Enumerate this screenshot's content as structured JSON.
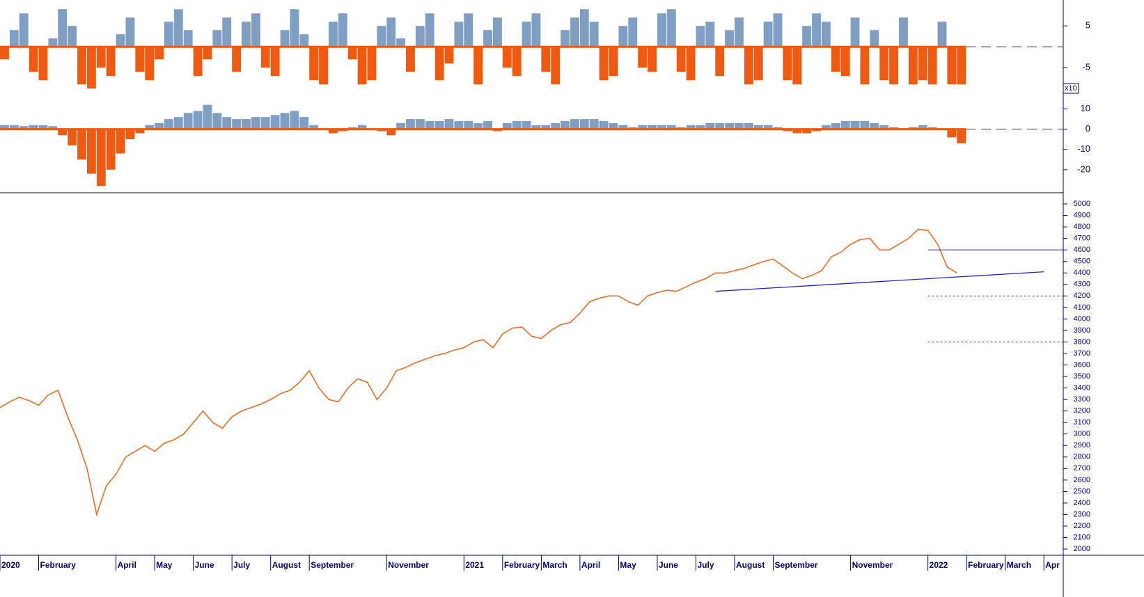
{
  "chart_data": [
    {
      "type": "bar",
      "positive_color": "#7f9ec4",
      "negative_color": "#f05a10",
      "zero_line": "dashed",
      "ylim": [
        -11.3,
        11.2
      ],
      "yticks": [
        5,
        -5
      ],
      "x": [
        0,
        0.25,
        0.5,
        0.75,
        1,
        1.25,
        1.5,
        1.75,
        2,
        2.25,
        2.5,
        2.75,
        3,
        3.25,
        3.5,
        3.75,
        4,
        4.25,
        4.5,
        4.75,
        5,
        5.25,
        5.5,
        5.75,
        6,
        6.25,
        6.5,
        6.75,
        7,
        7.25,
        7.5,
        7.75,
        8,
        8.25,
        8.5,
        8.75,
        9,
        9.25,
        9.5,
        9.75,
        10,
        10.25,
        10.5,
        10.75,
        11,
        11.25,
        11.5,
        11.75,
        12,
        12.25,
        12.5,
        12.75,
        13,
        13.25,
        13.5,
        13.75,
        14,
        14.25,
        14.5,
        14.75,
        15,
        15.25,
        15.5,
        15.75,
        16,
        16.25,
        16.5,
        16.75,
        17,
        17.25,
        17.5,
        17.75,
        18,
        18.25,
        18.5,
        18.75,
        19,
        19.25,
        19.5,
        19.75,
        20,
        20.25,
        20.5,
        20.75,
        21,
        21.25,
        21.5,
        21.75,
        22,
        22.25,
        22.5,
        22.75,
        23,
        23.25,
        23.5,
        23.75,
        24,
        24.25,
        24.5,
        24.75
      ],
      "values": [
        -3,
        4,
        8,
        -6,
        -8,
        2,
        9,
        5,
        -9,
        -10,
        -5,
        -7,
        3,
        7,
        -6,
        -8,
        -3,
        6,
        9,
        4,
        -7,
        -3,
        4,
        7,
        -6,
        6,
        8,
        -5,
        -7,
        4,
        9,
        3,
        -8,
        -9,
        6,
        8,
        -3,
        -9,
        -8,
        5,
        7,
        2,
        -6,
        5,
        8,
        -8,
        -4,
        6,
        8,
        -9,
        4,
        7,
        -5,
        -7,
        6,
        8,
        -6,
        -9,
        4,
        7,
        9,
        6,
        -8,
        -7,
        5,
        7,
        -5,
        -6,
        8,
        9,
        -6,
        -8,
        5,
        6,
        -7,
        4,
        7,
        -9,
        -8,
        6,
        8,
        -8,
        -9,
        5,
        8,
        6,
        -6,
        -7,
        7,
        -9,
        4,
        -8,
        -9,
        7,
        -9,
        -8,
        -9,
        6,
        -9,
        -9
      ]
    },
    {
      "type": "bar",
      "positive_color": "#7f9ec4",
      "negative_color": "#f05a10",
      "zero_line": "dashed",
      "scale_label": "x10",
      "ylim": [
        -31.4,
        17.4
      ],
      "yticks": [
        10,
        0,
        -10,
        -20
      ],
      "x": [
        0,
        0.25,
        0.5,
        0.75,
        1,
        1.25,
        1.5,
        1.75,
        2,
        2.25,
        2.5,
        2.75,
        3,
        3.25,
        3.5,
        3.75,
        4,
        4.25,
        4.5,
        4.75,
        5,
        5.25,
        5.5,
        5.75,
        6,
        6.25,
        6.5,
        6.75,
        7,
        7.25,
        7.5,
        7.75,
        8,
        8.25,
        8.5,
        8.75,
        9,
        9.25,
        9.5,
        9.75,
        10,
        10.25,
        10.5,
        10.75,
        11,
        11.25,
        11.5,
        11.75,
        12,
        12.25,
        12.5,
        12.75,
        13,
        13.25,
        13.5,
        13.75,
        14,
        14.25,
        14.5,
        14.75,
        15,
        15.25,
        15.5,
        15.75,
        16,
        16.25,
        16.5,
        16.75,
        17,
        17.25,
        17.5,
        17.75,
        18,
        18.25,
        18.5,
        18.75,
        19,
        19.25,
        19.5,
        19.75,
        20,
        20.25,
        20.5,
        20.75,
        21,
        21.25,
        21.5,
        21.75,
        22,
        22.25,
        22.5,
        22.75,
        23,
        23.25,
        23.5,
        23.75,
        24,
        24.25,
        24.5,
        24.75
      ],
      "values": [
        2,
        2,
        1.5,
        2,
        2,
        1.5,
        -3,
        -8,
        -15,
        -22,
        -28,
        -20,
        -12,
        -5,
        -2,
        2,
        3,
        5,
        6,
        8,
        9,
        12,
        8,
        6,
        5,
        5,
        6,
        6,
        7,
        8,
        9,
        6,
        2,
        0,
        -2,
        -1,
        1,
        2,
        0,
        -1,
        -3,
        3,
        5,
        5,
        4,
        4,
        5,
        4,
        4,
        3,
        4,
        -1,
        3,
        4,
        4,
        2,
        2,
        3,
        4,
        5,
        5,
        5,
        4,
        3,
        2,
        1,
        2,
        2,
        2,
        2,
        1,
        2,
        2,
        3,
        3,
        3,
        3,
        3,
        2,
        2,
        1,
        -1,
        -2,
        -2,
        -1,
        2,
        3,
        4,
        4,
        4,
        3,
        2,
        1,
        0,
        1,
        2,
        1,
        0,
        -4,
        -7
      ]
    },
    {
      "type": "line",
      "color": "#f06a20",
      "line_color": "#2222cc",
      "ylim": [
        1946,
        5097
      ],
      "yticks": [
        2000,
        2100,
        2200,
        2300,
        2400,
        2500,
        2600,
        2700,
        2800,
        2900,
        3000,
        3100,
        3200,
        3300,
        3400,
        3500,
        3600,
        3700,
        3800,
        3900,
        4000,
        4100,
        4200,
        4300,
        4400,
        4500,
        4600,
        4700,
        4800,
        4900,
        5000
      ],
      "xlim": [
        0,
        27.5
      ],
      "xticks": [
        {
          "value": 0,
          "label": "2020"
        },
        {
          "value": 1,
          "label": "February"
        },
        {
          "value": 3,
          "label": "April"
        },
        {
          "value": 4,
          "label": "May"
        },
        {
          "value": 5,
          "label": "June"
        },
        {
          "value": 6,
          "label": "July"
        },
        {
          "value": 7,
          "label": "August"
        },
        {
          "value": 8,
          "label": "September"
        },
        {
          "value": 10,
          "label": "November"
        },
        {
          "value": 12,
          "label": "2021"
        },
        {
          "value": 13,
          "label": "February"
        },
        {
          "value": 14,
          "label": "March"
        },
        {
          "value": 15,
          "label": "April"
        },
        {
          "value": 16,
          "label": "May"
        },
        {
          "value": 17,
          "label": "June"
        },
        {
          "value": 18,
          "label": "July"
        },
        {
          "value": 19,
          "label": "August"
        },
        {
          "value": 20,
          "label": "September"
        },
        {
          "value": 22,
          "label": "November"
        },
        {
          "value": 24,
          "label": "2022"
        },
        {
          "value": 25,
          "label": "February"
        },
        {
          "value": 26,
          "label": "March"
        },
        {
          "value": 27,
          "label": "Apr"
        }
      ],
      "x": [
        0,
        0.25,
        0.5,
        0.75,
        1,
        1.25,
        1.5,
        1.75,
        2,
        2.25,
        2.5,
        2.75,
        3,
        3.25,
        3.5,
        3.75,
        4,
        4.25,
        4.5,
        4.75,
        5,
        5.25,
        5.5,
        5.75,
        6,
        6.25,
        6.5,
        6.75,
        7,
        7.25,
        7.5,
        7.75,
        8,
        8.25,
        8.5,
        8.75,
        9,
        9.25,
        9.5,
        9.75,
        10,
        10.25,
        10.5,
        10.75,
        11,
        11.25,
        11.5,
        11.75,
        12,
        12.25,
        12.5,
        12.75,
        13,
        13.25,
        13.5,
        13.75,
        14,
        14.25,
        14.5,
        14.75,
        15,
        15.25,
        15.5,
        15.75,
        16,
        16.25,
        16.5,
        16.75,
        17,
        17.25,
        17.5,
        17.75,
        18,
        18.25,
        18.5,
        18.75,
        19,
        19.25,
        19.5,
        19.75,
        20,
        20.25,
        20.5,
        20.75,
        21,
        21.25,
        21.5,
        21.75,
        22,
        22.25,
        22.5,
        22.75,
        23,
        23.25,
        23.5,
        23.75,
        24,
        24.25,
        24.5,
        24.75
      ],
      "values": [
        3230,
        3280,
        3320,
        3290,
        3250,
        3340,
        3380,
        3150,
        2950,
        2700,
        2300,
        2550,
        2650,
        2800,
        2850,
        2900,
        2850,
        2920,
        2950,
        3000,
        3100,
        3200,
        3100,
        3050,
        3150,
        3200,
        3230,
        3260,
        3300,
        3350,
        3380,
        3450,
        3550,
        3400,
        3300,
        3280,
        3400,
        3480,
        3450,
        3300,
        3400,
        3550,
        3580,
        3620,
        3650,
        3680,
        3700,
        3730,
        3750,
        3800,
        3820,
        3750,
        3870,
        3920,
        3930,
        3850,
        3830,
        3900,
        3950,
        3970,
        4050,
        4150,
        4180,
        4200,
        4200,
        4150,
        4120,
        4200,
        4230,
        4250,
        4240,
        4280,
        4320,
        4350,
        4400,
        4400,
        4420,
        4440,
        4470,
        4500,
        4520,
        4460,
        4400,
        4350,
        4380,
        4420,
        4540,
        4580,
        4650,
        4690,
        4700,
        4600,
        4600,
        4650,
        4700,
        4780,
        4770,
        4650,
        4450,
        4400
      ],
      "hlines": [
        {
          "value": 4600,
          "style": "solid",
          "x_start": 24
        },
        {
          "value": 4200,
          "style": "dotted",
          "x_start": 24
        },
        {
          "value": 3800,
          "style": "dotted",
          "x_start": 24
        }
      ],
      "trendline": {
        "x": [
          18.5,
          27
        ],
        "y": [
          4240,
          4410
        ]
      }
    }
  ]
}
